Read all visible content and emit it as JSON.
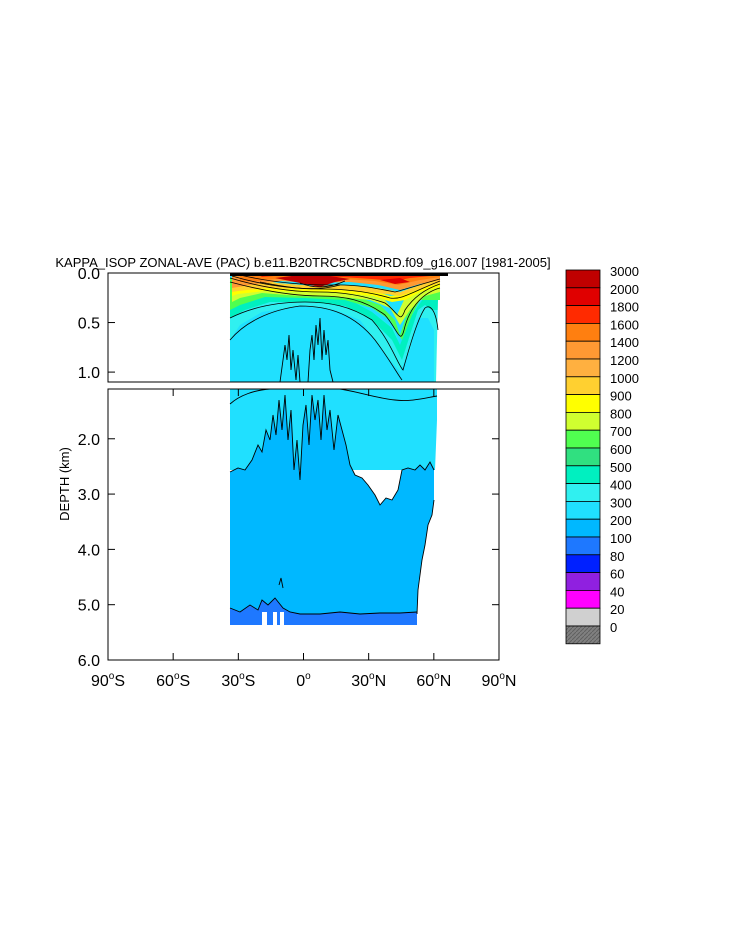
{
  "chart_data": {
    "type": "heatmap",
    "title": "KAPPA_ISOP ZONAL-AVE (PAC) b.e11.B20TRC5CNBDRD.f09_g16.007 [1981-2005]",
    "ylabel": "DEPTH (km)",
    "upper_panel": {
      "ylim": [
        0.0,
        1.1
      ],
      "yticks": [
        "0.0",
        "0.5",
        "1.0"
      ],
      "ytick_values": [
        0.0,
        0.5,
        1.0
      ]
    },
    "lower_panel": {
      "ylim": [
        1.1,
        6.0
      ],
      "yticks": [
        "2.0",
        "3.0",
        "4.0",
        "5.0",
        "6.0"
      ],
      "ytick_values": [
        2.0,
        3.0,
        4.0,
        5.0,
        6.0
      ]
    },
    "xlim": [
      -90,
      90
    ],
    "xtick_values": [
      -90,
      -60,
      -30,
      0,
      30,
      60,
      90
    ],
    "xticks": [
      {
        "label": "90",
        "sup": "o",
        "hem": "S"
      },
      {
        "label": "60",
        "sup": "o",
        "hem": "S"
      },
      {
        "label": "30",
        "sup": "o",
        "hem": "S"
      },
      {
        "label": "0",
        "sup": "o",
        "hem": ""
      },
      {
        "label": "30",
        "sup": "o",
        "hem": "N"
      },
      {
        "label": "60",
        "sup": "o",
        "hem": "N"
      },
      {
        "label": "90",
        "sup": "o",
        "hem": "N"
      }
    ],
    "colorbar": {
      "levels": [
        "3000",
        "2000",
        "1800",
        "1600",
        "1400",
        "1200",
        "1000",
        "900",
        "800",
        "700",
        "600",
        "500",
        "400",
        "300",
        "200",
        "100",
        "80",
        "60",
        "40",
        "20",
        "0"
      ],
      "colors": [
        "#c00000",
        "#e00000",
        "#ff2a00",
        "#ff7f10",
        "#ff9933",
        "#ffb040",
        "#ffd030",
        "#ffff00",
        "#d0ff30",
        "#50ff50",
        "#30e080",
        "#00f0c0",
        "#30f0f0",
        "#20e0ff",
        "#00b8ff",
        "#1e78ff",
        "#0020ff",
        "#9020e0",
        "#ff00ff",
        "#d0d0d0",
        "#808080"
      ]
    },
    "data_extent": {
      "lon_min": -33,
      "lon_max": 62,
      "max_depth_km": 5.4
    }
  }
}
